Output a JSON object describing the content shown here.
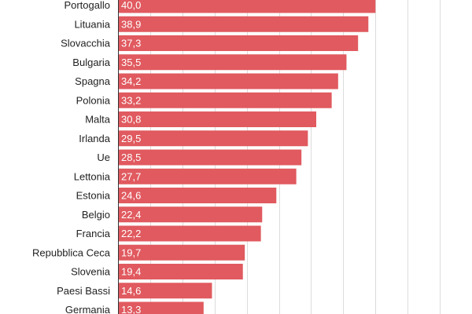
{
  "chart_data": {
    "type": "bar",
    "orientation": "horizontal",
    "title": "",
    "xlabel": "",
    "ylabel": "",
    "xlim": [
      0,
      55
    ],
    "grid": true,
    "bar_color": "#e05a5f",
    "categories": [
      "Portogallo",
      "Lituania",
      "Slovacchia",
      "Bulgaria",
      "Spagna",
      "Polonia",
      "Malta",
      "Irlanda",
      "Ue",
      "Lettonia",
      "Estonia",
      "Belgio",
      "Francia",
      "Repubblica Ceca",
      "Slovenia",
      "Paesi Bassi",
      "Germania"
    ],
    "values": [
      40.0,
      38.9,
      37.3,
      35.5,
      34.2,
      33.2,
      30.8,
      29.5,
      28.5,
      27.7,
      24.6,
      22.4,
      22.2,
      19.7,
      19.4,
      14.6,
      13.3
    ],
    "value_labels": [
      "40,0",
      "38,9",
      "37,3",
      "35,5",
      "34,2",
      "33,2",
      "30,8",
      "29,5",
      "28,5",
      "27,7",
      "24,6",
      "22,4",
      "22,2",
      "19,7",
      "19,4",
      "14,6",
      "13,3"
    ]
  }
}
